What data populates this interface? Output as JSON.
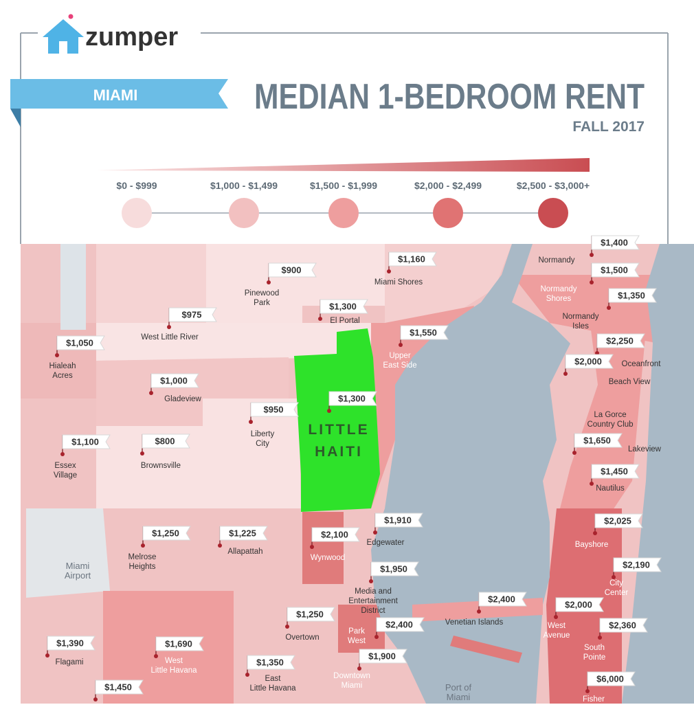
{
  "header": {
    "brand": "zumper",
    "city": "MIAMI",
    "title": "MEDIAN 1-BEDROOM RENT",
    "subtitle": "FALL 2017"
  },
  "legend": {
    "items": [
      "$0 - $999",
      "$1,000 - $1,499",
      "$1,500 - $1,999",
      "$2,000 - $2,499",
      "$2,500 - $3,000+"
    ]
  },
  "map": {
    "highlight": [
      "LITTLE",
      "HAITI"
    ],
    "neighborhoods": [
      {
        "name": [
          "Normandy"
        ],
        "price": "$1,400"
      },
      {
        "name": [
          "Normandy",
          "Shores"
        ],
        "price": "$1,500"
      },
      {
        "name": [
          "Normandy",
          "Isles"
        ],
        "price": "$1,350"
      },
      {
        "name": [
          "Miami Shores"
        ],
        "price": "$1,160"
      },
      {
        "name": [
          "Pinewood",
          "Park"
        ],
        "price": "$900"
      },
      {
        "name": [
          "El Portal"
        ],
        "price": "$1,300"
      },
      {
        "name": [
          "West Little River"
        ],
        "price": "$975"
      },
      {
        "name": [
          "Hialeah",
          "Acres"
        ],
        "price": "$1,050"
      },
      {
        "name": [
          "Upper",
          "East Side"
        ],
        "price": "$1,550"
      },
      {
        "name": [
          "Oceanfront"
        ],
        "price": "$2,250"
      },
      {
        "name": [
          "Beach View"
        ],
        "price": "$2,000"
      },
      {
        "name": [
          "Gladeview"
        ],
        "price": "$1,000"
      },
      {
        "price": "$1,300"
      },
      {
        "name": [
          "Liberty",
          "City"
        ],
        "price": "$950"
      },
      {
        "name": [
          "La Gorce",
          "Country Club"
        ]
      },
      {
        "name": [
          "Essex",
          "Village"
        ],
        "price": "$1,100"
      },
      {
        "name": [
          "Brownsville"
        ],
        "price": "$800"
      },
      {
        "name": [
          "Lakeview"
        ],
        "price": "$1,650"
      },
      {
        "name": [
          "Nautilus"
        ],
        "price": "$1,450"
      },
      {
        "name": [
          "Edgewater"
        ],
        "price": "$1,910"
      },
      {
        "name": [
          "Wynwood"
        ],
        "price": "$2,100"
      },
      {
        "name": [
          "Bayshore"
        ],
        "price": "$2,025"
      },
      {
        "name": [
          "Melrose",
          "Heights"
        ],
        "price": "$1,250"
      },
      {
        "name": [
          "Allapattah"
        ],
        "price": "$1,225"
      },
      {
        "name": [
          "Miami",
          "Airport"
        ]
      },
      {
        "name": [
          "City",
          "Center"
        ],
        "price": "$2,190"
      },
      {
        "name": [
          "Media and",
          "Entertainment",
          "District"
        ],
        "price": "$1,950"
      },
      {
        "name": [
          "Venetian Islands"
        ],
        "price": "$2,400"
      },
      {
        "name": [
          "West",
          "Avenue"
        ],
        "price": "$2,000"
      },
      {
        "name": [
          "Overtown"
        ],
        "price": "$1,250"
      },
      {
        "name": [
          "Park",
          "West"
        ],
        "price": "$2,400"
      },
      {
        "name": [
          "South",
          "Pointe"
        ],
        "price": "$2,360"
      },
      {
        "name": [
          "Flagami"
        ],
        "price": "$1,390"
      },
      {
        "name": [
          "West",
          "Little Havana"
        ],
        "price": "$1,690"
      },
      {
        "name": [
          "Downtown",
          "Miami"
        ],
        "price": "$1,900"
      },
      {
        "name": [
          "East",
          "Little Havana"
        ],
        "price": "$1,350"
      },
      {
        "name": [
          "Port of",
          "Miami"
        ]
      },
      {
        "name": [
          "Fisher"
        ],
        "price": "$6,000"
      },
      {
        "price": "$1,450"
      }
    ]
  }
}
